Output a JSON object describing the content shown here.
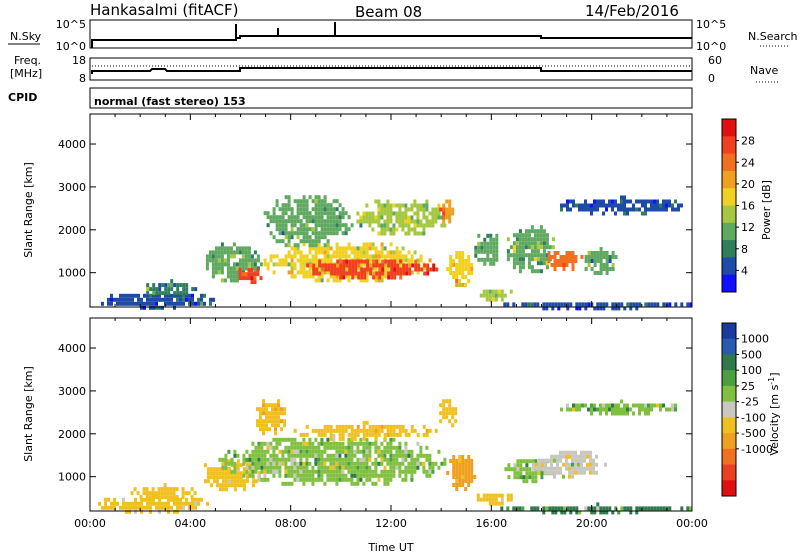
{
  "header": {
    "station": "Hankasalmi (fitACF)",
    "beam": "Beam 08",
    "date": "14/Feb/2016"
  },
  "top_panels": {
    "nsky_label": "N.Sky",
    "nsky_top_tick": "10^5",
    "nsky_bottom_tick": "10^0",
    "nsearch_label": "N.Search",
    "freq_label_line1": "Freq.",
    "freq_label_line2": "[MHz]",
    "freq_ticks": [
      "18",
      "8"
    ],
    "nave_label": "Nave",
    "nave_ticks": [
      "60",
      "0"
    ],
    "cpid_label": "CPID",
    "cpid_text": "normal (fast stereo) 153"
  },
  "colors": {
    "power_scale": [
      "#1010ff",
      "#1e4aa8",
      "#2e7d5c",
      "#5fa860",
      "#a6c840",
      "#f0d020",
      "#f0a020",
      "#f07020",
      "#f04020",
      "#e01010"
    ],
    "velocity_scale": [
      "#1a3aa0",
      "#2a5ab0",
      "#2f7a4a",
      "#4aa040",
      "#80c040",
      "#c8c8c0",
      "#f0c020",
      "#f0a020",
      "#f07020",
      "#e84020",
      "#e01010"
    ]
  },
  "chart_data": [
    {
      "type": "heatmap",
      "title": "",
      "quantity": "Power",
      "xlabel": "",
      "ylabel": "Slant Range [km]",
      "x_unit": "hours UT",
      "xlim": [
        0,
        24
      ],
      "ylim": [
        200,
        4700
      ],
      "y_ticks": [
        "1000",
        "2000",
        "3000",
        "4000"
      ],
      "colorbar_label": "Power [dB]",
      "colorbar_ticks": [
        "4",
        "8",
        "12",
        "16",
        "20",
        "24",
        "28"
      ],
      "colorbar_range": [
        0,
        32
      ],
      "echo_regions": [
        {
          "t_start": 0.2,
          "t_end": 5.0,
          "r_start": 200,
          "r_end": 600,
          "value": 5
        },
        {
          "t_start": 2.0,
          "t_end": 4.3,
          "r_start": 500,
          "r_end": 850,
          "value": 8
        },
        {
          "t_start": 4.5,
          "t_end": 6.8,
          "r_start": 800,
          "r_end": 1800,
          "value": 12
        },
        {
          "t_start": 5.8,
          "t_end": 6.8,
          "r_start": 800,
          "r_end": 1200,
          "value": 27
        },
        {
          "t_start": 6.8,
          "t_end": 13.6,
          "r_start": 800,
          "r_end": 1800,
          "value": 17
        },
        {
          "t_start": 8.5,
          "t_end": 13.8,
          "r_start": 900,
          "r_end": 1400,
          "value": 26
        },
        {
          "t_start": 6.8,
          "t_end": 10.5,
          "r_start": 1600,
          "r_end": 2900,
          "value": 10
        },
        {
          "t_start": 10.5,
          "t_end": 14.3,
          "r_start": 1900,
          "r_end": 2800,
          "value": 14
        },
        {
          "t_start": 13.8,
          "t_end": 14.6,
          "r_start": 2200,
          "r_end": 2800,
          "value": 22
        },
        {
          "t_start": 14.2,
          "t_end": 15.2,
          "r_start": 700,
          "r_end": 1600,
          "value": 18
        },
        {
          "t_start": 15.3,
          "t_end": 16.8,
          "r_start": 400,
          "r_end": 700,
          "value": 14
        },
        {
          "t_start": 15.2,
          "t_end": 16.4,
          "r_start": 1200,
          "r_end": 2000,
          "value": 10
        },
        {
          "t_start": 16.5,
          "t_end": 18.5,
          "r_start": 1000,
          "r_end": 2200,
          "value": 12
        },
        {
          "t_start": 18.0,
          "t_end": 19.6,
          "r_start": 1100,
          "r_end": 1600,
          "value": 25
        },
        {
          "t_start": 19.6,
          "t_end": 21.0,
          "r_start": 1000,
          "r_end": 1600,
          "value": 10
        },
        {
          "t_start": 18.5,
          "t_end": 23.8,
          "r_start": 2400,
          "r_end": 2800,
          "value": 5
        },
        {
          "t_start": 16.0,
          "t_end": 24.0,
          "r_start": 200,
          "r_end": 400,
          "value": 5
        }
      ]
    },
    {
      "type": "heatmap",
      "title": "",
      "quantity": "Velocity",
      "xlabel": "Time UT",
      "ylabel": "Slant Range [km]",
      "x_unit": "hours UT",
      "xlim": [
        0,
        24
      ],
      "ylim": [
        200,
        4700
      ],
      "x_ticks": [
        "00:00",
        "04:00",
        "08:00",
        "12:00",
        "16:00",
        "20:00",
        "00:00"
      ],
      "y_ticks": [
        "1000",
        "2000",
        "3000",
        "4000"
      ],
      "colorbar_label": "Velocity [m s^-1]",
      "colorbar_ticks": [
        "1000",
        "500",
        "100",
        "25",
        "-25",
        "-100",
        "-500",
        "-1000"
      ],
      "echo_regions": [
        {
          "t_start": 0.2,
          "t_end": 4.8,
          "r_start": 200,
          "r_end": 600,
          "value": -200
        },
        {
          "t_start": 1.5,
          "t_end": 4.3,
          "r_start": 500,
          "r_end": 850,
          "value": -300
        },
        {
          "t_start": 4.3,
          "t_end": 6.8,
          "r_start": 700,
          "r_end": 1500,
          "value": -200
        },
        {
          "t_start": 6.5,
          "t_end": 7.8,
          "r_start": 2000,
          "r_end": 2900,
          "value": -500
        },
        {
          "t_start": 5.0,
          "t_end": 14.3,
          "r_start": 800,
          "r_end": 2000,
          "value": 0
        },
        {
          "t_start": 8.0,
          "t_end": 13.8,
          "r_start": 1900,
          "r_end": 2300,
          "value": -400
        },
        {
          "t_start": 13.8,
          "t_end": 14.6,
          "r_start": 2200,
          "r_end": 2900,
          "value": -300
        },
        {
          "t_start": 14.2,
          "t_end": 15.3,
          "r_start": 700,
          "r_end": 1600,
          "value": -600
        },
        {
          "t_start": 15.3,
          "t_end": 16.8,
          "r_start": 400,
          "r_end": 700,
          "value": -200
        },
        {
          "t_start": 16.4,
          "t_end": 18.5,
          "r_start": 900,
          "r_end": 1500,
          "value": 0
        },
        {
          "t_start": 17.5,
          "t_end": 20.5,
          "r_start": 1000,
          "r_end": 1700,
          "value": -100
        },
        {
          "t_start": 18.5,
          "t_end": 23.8,
          "r_start": 2500,
          "r_end": 2800,
          "value": 0
        },
        {
          "t_start": 16.0,
          "t_end": 24.0,
          "r_start": 200,
          "r_end": 400,
          "value": 100
        }
      ]
    }
  ]
}
